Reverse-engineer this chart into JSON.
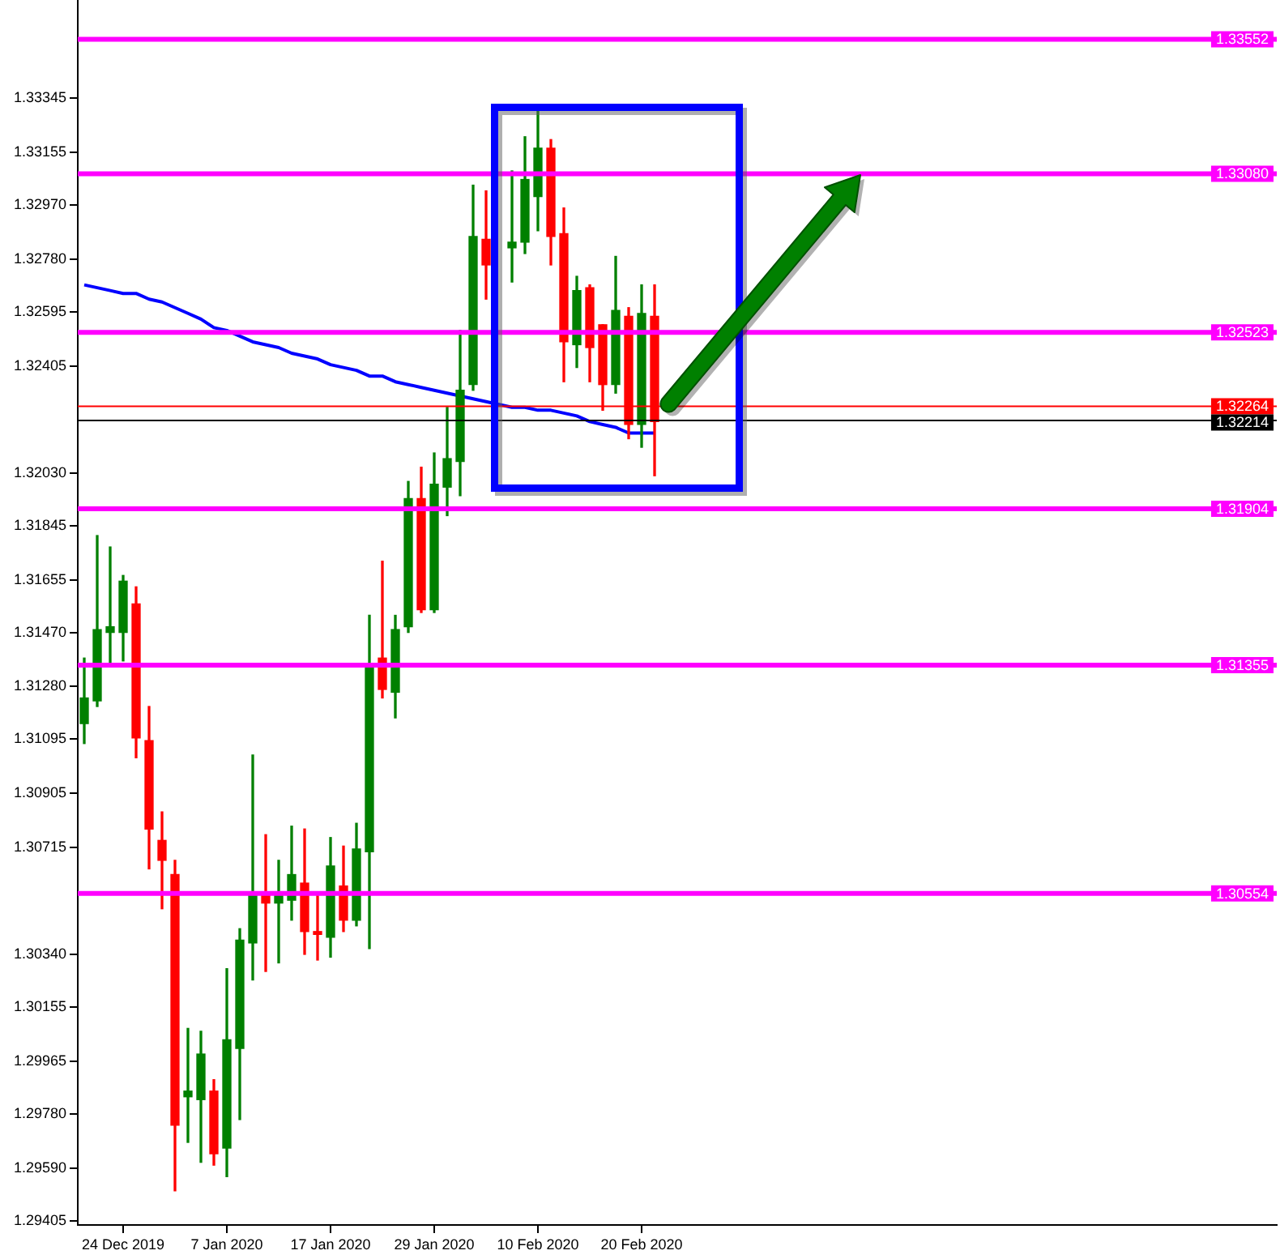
{
  "chart_data": {
    "type": "candlestick",
    "categories": [
      null,
      null,
      null,
      "24 Dec 2019",
      null,
      null,
      null,
      null,
      null,
      null,
      null,
      "7 Jan 2020",
      null,
      null,
      null,
      null,
      null,
      null,
      null,
      "17 Jan 2020",
      null,
      null,
      null,
      null,
      null,
      null,
      null,
      "29 Jan 2020",
      null,
      null,
      null,
      null,
      null,
      null,
      null,
      "10 Feb 2020",
      null,
      null,
      null,
      null,
      null,
      null,
      null,
      "20 Feb 2020",
      null
    ],
    "ohlc": [
      [
        1.3115,
        1.3138,
        1.3108,
        1.3124
      ],
      [
        1.3123,
        1.3181,
        1.3121,
        1.3148
      ],
      [
        1.3147,
        1.3177,
        1.3136,
        1.3149
      ],
      [
        1.3147,
        1.3167,
        1.3137,
        1.3165
      ],
      [
        1.3157,
        1.3163,
        1.3103,
        1.311
      ],
      [
        1.3109,
        1.3121,
        1.3064,
        1.3078
      ],
      [
        1.3074,
        1.3084,
        1.305,
        1.3067
      ],
      [
        1.3062,
        1.3067,
        1.2951,
        1.2974
      ],
      [
        1.2984,
        1.3008,
        1.2968,
        1.2986
      ],
      [
        1.2983,
        1.3007,
        1.2961,
        1.2999
      ],
      [
        1.2986,
        1.299,
        1.296,
        1.2964
      ],
      [
        1.2966,
        1.3029,
        1.2956,
        1.3004
      ],
      [
        1.3001,
        1.3043,
        1.2976,
        1.3039
      ],
      [
        1.3038,
        1.3104,
        1.3025,
        1.3055
      ],
      [
        1.3055,
        1.3076,
        1.3028,
        1.3052
      ],
      [
        1.3052,
        1.3067,
        1.3031,
        1.3055
      ],
      [
        1.3053,
        1.3079,
        1.3046,
        1.3062
      ],
      [
        1.3059,
        1.3078,
        1.3034,
        1.3042
      ],
      [
        1.3042,
        1.3055,
        1.3032,
        1.3041
      ],
      [
        1.304,
        1.3075,
        1.3033,
        1.3065
      ],
      [
        1.3058,
        1.3072,
        1.3042,
        1.3046
      ],
      [
        1.3046,
        1.308,
        1.3044,
        1.3071
      ],
      [
        1.307,
        1.3153,
        1.3036,
        1.3135
      ],
      [
        1.3138,
        1.3172,
        1.3124,
        1.3127
      ],
      [
        1.3126,
        1.3153,
        1.3117,
        1.3148
      ],
      [
        1.3149,
        1.32,
        1.3147,
        1.3194
      ],
      [
        1.3194,
        1.3205,
        1.3154,
        1.3155
      ],
      [
        1.3155,
        1.321,
        1.3154,
        1.3199
      ],
      [
        1.3198,
        1.3226,
        1.3188,
        1.3208
      ],
      [
        1.3207,
        1.3253,
        1.3195,
        1.3232
      ],
      [
        1.3234,
        1.3304,
        1.3232,
        1.3286
      ],
      [
        1.3285,
        1.3302,
        1.3264,
        1.3276
      ],
      null,
      [
        1.3282,
        1.3309,
        1.327,
        1.3284
      ],
      [
        1.3284,
        1.3321,
        1.328,
        1.3306
      ],
      [
        1.33,
        1.333,
        1.3288,
        1.3317
      ],
      [
        1.3317,
        1.332,
        1.3276,
        1.3286
      ],
      [
        1.3287,
        1.3296,
        1.3235,
        1.3249
      ],
      [
        1.3248,
        1.3272,
        1.324,
        1.3267
      ],
      [
        1.3268,
        1.3269,
        1.3235,
        1.3247
      ],
      [
        1.3255,
        1.3255,
        1.3225,
        1.3234
      ],
      [
        1.3234,
        1.3279,
        1.3231,
        1.326
      ],
      [
        1.3258,
        1.3261,
        1.3215,
        1.322
      ],
      [
        1.322,
        1.3269,
        1.3212,
        1.3259
      ],
      [
        1.3258,
        1.3269,
        1.3202,
        1.3221
      ]
    ],
    "colors": [
      "#008000",
      "#008000",
      "#008000",
      "#008000",
      "#ff0000",
      "#ff0000",
      "#ff0000",
      "#ff0000",
      "#008000",
      "#008000",
      "#ff0000",
      "#008000",
      "#008000",
      "#008000",
      "#ff0000",
      "#008000",
      "#008000",
      "#ff0000",
      "#ff0000",
      "#008000",
      "#ff0000",
      "#008000",
      "#008000",
      "#ff0000",
      "#008000",
      "#008000",
      "#ff0000",
      "#008000",
      "#008000",
      "#008000",
      "#008000",
      "#ff0000",
      null,
      "#008000",
      "#008000",
      "#008000",
      "#ff0000",
      "#ff0000",
      "#008000",
      "#ff0000",
      "#ff0000",
      "#008000",
      "#ff0000",
      "#008000",
      "#ff0000"
    ],
    "series": [
      {
        "type": "line",
        "color": "#0000ff",
        "values": [
          1.3269,
          1.3268,
          1.3267,
          1.3266,
          1.3266,
          1.3264,
          1.3263,
          1.3261,
          1.3259,
          1.3257,
          1.3254,
          1.3253,
          1.3251,
          1.3249,
          1.3248,
          1.3247,
          1.3245,
          1.3244,
          1.3243,
          1.3241,
          1.324,
          1.3239,
          1.3237,
          1.3237,
          1.3235,
          1.3234,
          1.3233,
          1.3232,
          1.3231,
          1.323,
          1.3229,
          1.3228,
          1.3227,
          1.3226,
          1.3226,
          1.3225,
          1.3225,
          1.3224,
          1.3223,
          1.3221,
          1.322,
          1.3219,
          1.3217,
          1.3217,
          1.3217
        ]
      }
    ],
    "ylim": [
      1.2939,
      1.3369
    ],
    "yticks": [
      {
        "value": 1.29405,
        "label": "1.29405"
      },
      {
        "value": 1.2959,
        "label": "1.29590"
      },
      {
        "value": 1.2978,
        "label": "1.29780"
      },
      {
        "value": 1.29965,
        "label": "1.29965"
      },
      {
        "value": 1.30155,
        "label": "1.30155"
      },
      {
        "value": 1.3034,
        "label": "1.30340"
      },
      {
        "value": 1.30715,
        "label": "1.30715"
      },
      {
        "value": 1.30905,
        "label": "1.30905"
      },
      {
        "value": 1.31095,
        "label": "1.31095"
      },
      {
        "value": 1.3128,
        "label": "1.31280"
      },
      {
        "value": 1.3147,
        "label": "1.31470"
      },
      {
        "value": 1.31655,
        "label": "1.31655"
      },
      {
        "value": 1.31845,
        "label": "1.31845"
      },
      {
        "value": 1.3203,
        "label": "1.32030"
      },
      {
        "value": 1.32405,
        "label": "1.32405"
      },
      {
        "value": 1.32595,
        "label": "1.32595"
      },
      {
        "value": 1.3278,
        "label": "1.32780"
      },
      {
        "value": 1.3297,
        "label": "1.32970"
      },
      {
        "value": 1.33155,
        "label": "1.33155"
      },
      {
        "value": 1.33345,
        "label": "1.33345"
      }
    ],
    "ref_lines": [
      {
        "axis": "y",
        "value": 1.33552,
        "label": "1.33552",
        "color": "#ff00ff"
      },
      {
        "axis": "y",
        "value": 1.3308,
        "label": "1.33080",
        "color": "#ff00ff"
      },
      {
        "axis": "y",
        "value": 1.32523,
        "label": "1.32523",
        "color": "#ff00ff"
      },
      {
        "axis": "y",
        "value": 1.31904,
        "label": "1.31904",
        "color": "#ff00ff"
      },
      {
        "axis": "y",
        "value": 1.31355,
        "label": "1.31355",
        "color": "#ff00ff"
      },
      {
        "axis": "y",
        "value": 1.30554,
        "label": "1.30554",
        "color": "#ff00ff"
      },
      {
        "axis": "y",
        "value": 1.32264,
        "label": "1.32264",
        "color": "#ff0000"
      },
      {
        "axis": "y",
        "value": 1.32214,
        "label": "1.32214",
        "color": "#000000"
      }
    ]
  }
}
